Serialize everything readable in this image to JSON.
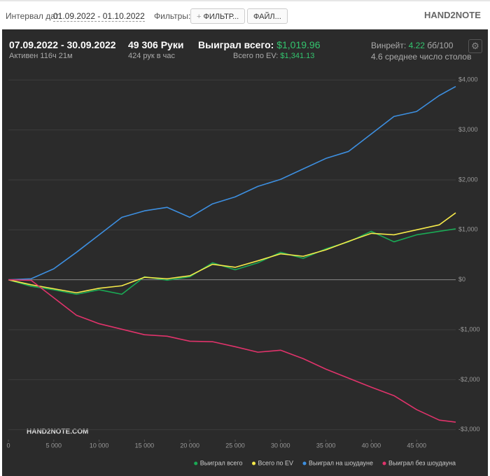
{
  "toolbar": {
    "date_label": "Интервал дат:",
    "date_range": "01.09.2022 - 01.10.2022",
    "filters_label": "Фильтры:",
    "filter_button": "ФИЛЬТР...",
    "file_button": "ФАЙЛ...",
    "logo": "HAND2NOTE"
  },
  "header": {
    "period": "07.09.2022 - 30.09.2022",
    "active": "Активен 116ч 21м",
    "hands": "49 306 Руки",
    "hands_per_hour": "424 рук в час",
    "won_label": "Выиграл всего:",
    "won_value": "$1,019.96",
    "ev_label": "Всего по EV:",
    "ev_value": "$1,341.13",
    "winrate_label": "Винрейт:",
    "winrate_value": "4.22",
    "winrate_unit": "бб/100",
    "tables": "4.6 среднее число столов"
  },
  "watermark": "HAND2NOTE.COM",
  "chart_data": {
    "type": "line",
    "x": [
      0,
      2500,
      5000,
      7500,
      10000,
      12500,
      15000,
      17500,
      20000,
      22500,
      25000,
      27500,
      30000,
      32500,
      35000,
      37500,
      40000,
      42500,
      45000,
      47500,
      49306
    ],
    "series": [
      {
        "name": "Выиграл всего",
        "color": "#1aaa55",
        "values": [
          0,
          -130,
          -200,
          -290,
          -200,
          -290,
          60,
          -10,
          60,
          340,
          200,
          340,
          550,
          430,
          620,
          760,
          970,
          760,
          900,
          970,
          1020
        ]
      },
      {
        "name": "Всего по EV",
        "color": "#f5e94a",
        "values": [
          0,
          -100,
          -180,
          -260,
          -170,
          -120,
          50,
          20,
          80,
          310,
          250,
          380,
          520,
          470,
          600,
          770,
          930,
          900,
          1000,
          1100,
          1340
        ]
      },
      {
        "name": "Выиграл на шоудауне",
        "color": "#3d8fe0",
        "values": [
          0,
          20,
          220,
          550,
          900,
          1250,
          1380,
          1450,
          1250,
          1520,
          1660,
          1870,
          2010,
          2220,
          2430,
          2570,
          2920,
          3270,
          3370,
          3690,
          3870
        ]
      },
      {
        "name": "Выиграл без шоудауна",
        "color": "#e0336b",
        "values": [
          0,
          -10,
          -360,
          -710,
          -880,
          -990,
          -1100,
          -1130,
          -1230,
          -1240,
          -1340,
          -1450,
          -1410,
          -1580,
          -1790,
          -1970,
          -2150,
          -2320,
          -2600,
          -2810,
          -2850
        ]
      }
    ],
    "xlim": [
      0,
      49306
    ],
    "ylim": [
      -3200,
      4200
    ],
    "xticks": [
      0,
      {
        "value": 5000,
        "label": "5 000"
      },
      {
        "value": 10000,
        "label": "10 000"
      },
      {
        "value": 15000,
        "label": "15 000"
      },
      {
        "value": 20000,
        "label": "20 000"
      },
      {
        "value": 25000,
        "label": "25 000"
      },
      {
        "value": 30000,
        "label": "30 000"
      },
      {
        "value": 35000,
        "label": "35 000"
      },
      {
        "value": 40000,
        "label": "40 000"
      },
      {
        "value": 45000,
        "label": "45 000"
      }
    ],
    "yticks": [
      {
        "value": -3000,
        "label": "-$3,000"
      },
      {
        "value": -2000,
        "label": "-$2,000"
      },
      {
        "value": -1000,
        "label": "-$1,000"
      },
      {
        "value": 0,
        "label": "$0"
      },
      {
        "value": 1000,
        "label": "$1,000"
      },
      {
        "value": 2000,
        "label": "$2,000"
      },
      {
        "value": 3000,
        "label": "$3,000"
      },
      {
        "value": 4000,
        "label": "$4,000"
      }
    ],
    "grid": true,
    "legend": "bottom-right"
  }
}
